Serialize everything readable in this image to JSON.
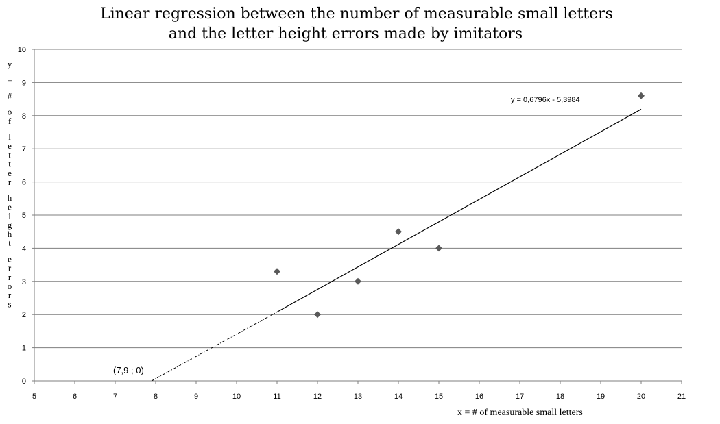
{
  "chart_data": {
    "type": "scatter",
    "title": [
      "Linear regression between the number of measurable small letters",
      "and the letter height errors made by imitators"
    ],
    "xlabel": "x  = # of measurable small letters",
    "ylabel": "y = # of letter height errors",
    "xlim": [
      5,
      21
    ],
    "ylim": [
      0,
      10
    ],
    "x_ticks": [
      5,
      6,
      7,
      8,
      9,
      10,
      11,
      12,
      13,
      14,
      15,
      16,
      17,
      18,
      19,
      20,
      21
    ],
    "y_ticks": [
      0,
      1,
      2,
      3,
      4,
      5,
      6,
      7,
      8,
      9,
      10
    ],
    "grid": "horizontal",
    "series": [
      {
        "x": [
          11,
          12,
          13,
          14,
          15,
          20
        ],
        "y": [
          3.3,
          2,
          3,
          4.5,
          4,
          8.6
        ]
      }
    ],
    "trendline": {
      "equation": "y = 0,6796x  - 5,3984",
      "slope": 0.6796,
      "intercept": -5.3984,
      "solid_range": [
        11,
        20
      ],
      "extrapolated_range": [
        7.9,
        11
      ]
    },
    "annotations": [
      {
        "text": "(7,9 ; 0)",
        "x": 7.9,
        "y": 0
      }
    ],
    "colors": {
      "marker": "#595959",
      "grid": "#7f7f7f",
      "line": "#000000"
    }
  }
}
